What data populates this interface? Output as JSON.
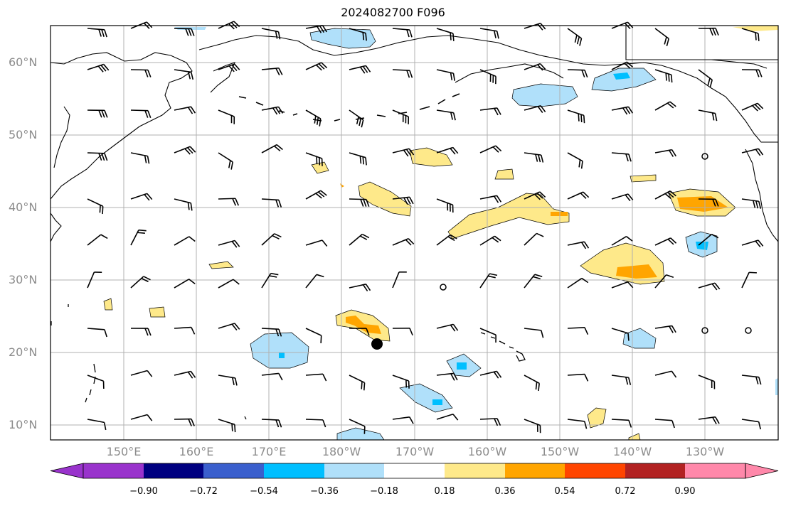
{
  "title": "2024082700 F096",
  "lat_labels": [
    "60°N",
    "50°N",
    "40°N",
    "30°N",
    "20°N",
    "10°N"
  ],
  "lon_labels": [
    "150°E",
    "160°E",
    "170°E",
    "180°W",
    "170°W",
    "160°W",
    "150°W",
    "140°W",
    "130°W"
  ],
  "colorbar": {
    "ticks": [
      "−0.90",
      "−0.72",
      "−0.54",
      "−0.36",
      "−0.18",
      "0.18",
      "0.36",
      "0.54",
      "0.72",
      "0.90"
    ],
    "colors": [
      "#9933cc",
      "#000080",
      "#3a5fcd",
      "#00bfff",
      "#b0e0fa",
      "#ffffff",
      "#fee98a",
      "#ffa500",
      "#ff4500",
      "#b22222",
      "#ff88aa"
    ]
  },
  "colors": {
    "grid": "#b0b0b0",
    "coast": "#000000",
    "neg_light": "#b0e0fa",
    "neg_mid": "#00bfff",
    "pos_light": "#fee98a",
    "pos_mid": "#ffa500"
  }
}
